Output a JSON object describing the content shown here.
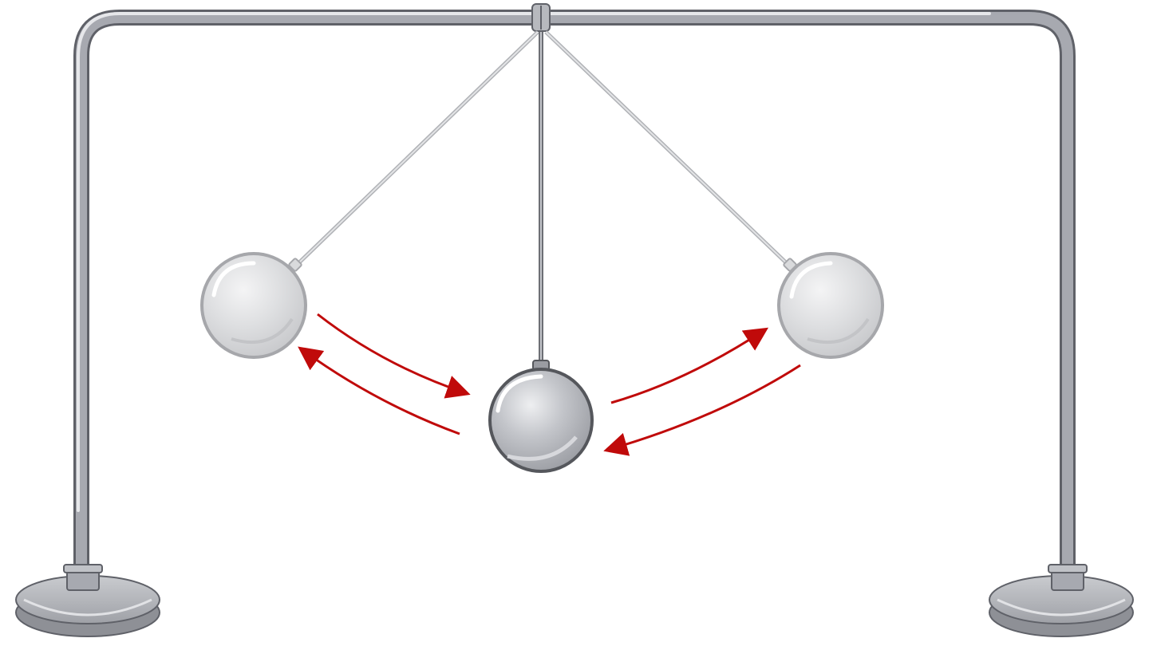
{
  "diagram": {
    "subject": "pendulum",
    "colors": {
      "background": "#ffffff",
      "frame_outline": "#5f6168",
      "frame_fill": "#a7a9b0",
      "frame_highlight": "#e6e7ea",
      "string": "#8e9096",
      "bob_faded_fill": "#d9dadc",
      "bob_faded_outline": "#a6a7ab",
      "bob_center_fill": "#b4b6bb",
      "bob_center_outline": "#55575c",
      "arrow": "#c00a0a"
    },
    "icons": [
      "pendulum-frame-icon",
      "pendulum-bob-icon",
      "motion-arrow-icon"
    ]
  }
}
